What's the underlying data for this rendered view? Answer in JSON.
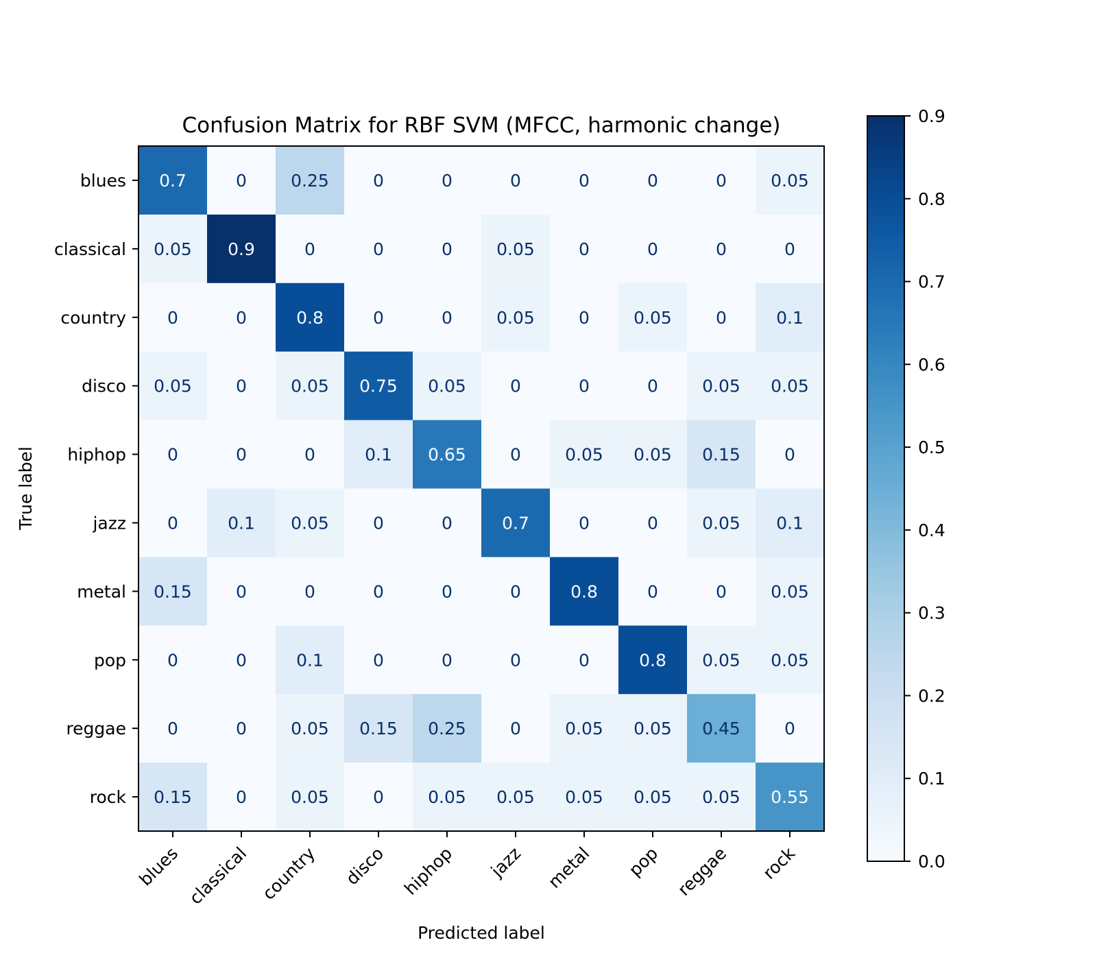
{
  "chart_data": {
    "type": "heatmap",
    "title": "Confusion Matrix for RBF SVM (MFCC, harmonic change)",
    "xlabel": "Predicted label",
    "ylabel": "True label",
    "x_categories": [
      "blues",
      "classical",
      "country",
      "disco",
      "hiphop",
      "jazz",
      "metal",
      "pop",
      "reggae",
      "rock"
    ],
    "y_categories": [
      "blues",
      "classical",
      "country",
      "disco",
      "hiphop",
      "jazz",
      "metal",
      "pop",
      "reggae",
      "rock"
    ],
    "values": [
      [
        0.7,
        0,
        0.25,
        0,
        0,
        0,
        0,
        0,
        0,
        0.05
      ],
      [
        0.05,
        0.9,
        0,
        0,
        0,
        0.05,
        0,
        0,
        0,
        0
      ],
      [
        0,
        0,
        0.8,
        0,
        0,
        0.05,
        0,
        0.05,
        0,
        0.1
      ],
      [
        0.05,
        0,
        0.05,
        0.75,
        0.05,
        0,
        0,
        0,
        0.05,
        0.05
      ],
      [
        0,
        0,
        0,
        0.1,
        0.65,
        0,
        0.05,
        0.05,
        0.15,
        0
      ],
      [
        0,
        0.1,
        0.05,
        0,
        0,
        0.7,
        0,
        0,
        0.05,
        0.1
      ],
      [
        0.15,
        0,
        0,
        0,
        0,
        0,
        0.8,
        0,
        0,
        0.05
      ],
      [
        0,
        0,
        0.1,
        0,
        0,
        0,
        0,
        0.8,
        0.05,
        0.05
      ],
      [
        0,
        0,
        0.05,
        0.15,
        0.25,
        0,
        0.05,
        0.05,
        0.45,
        0
      ],
      [
        0.15,
        0,
        0.05,
        0,
        0.05,
        0.05,
        0.05,
        0.05,
        0.05,
        0.55
      ]
    ],
    "colorbar": {
      "colormap": "Blues",
      "range": [
        0.0,
        0.9
      ],
      "ticks": [
        "0.0",
        "0.1",
        "0.2",
        "0.3",
        "0.4",
        "0.5",
        "0.6",
        "0.7",
        "0.8",
        "0.9"
      ]
    },
    "grid": false
  },
  "colors": {
    "low": "#f7fbff",
    "high": "#08306b",
    "text_dark": "#08306b",
    "text_light": "#f7fbff"
  }
}
